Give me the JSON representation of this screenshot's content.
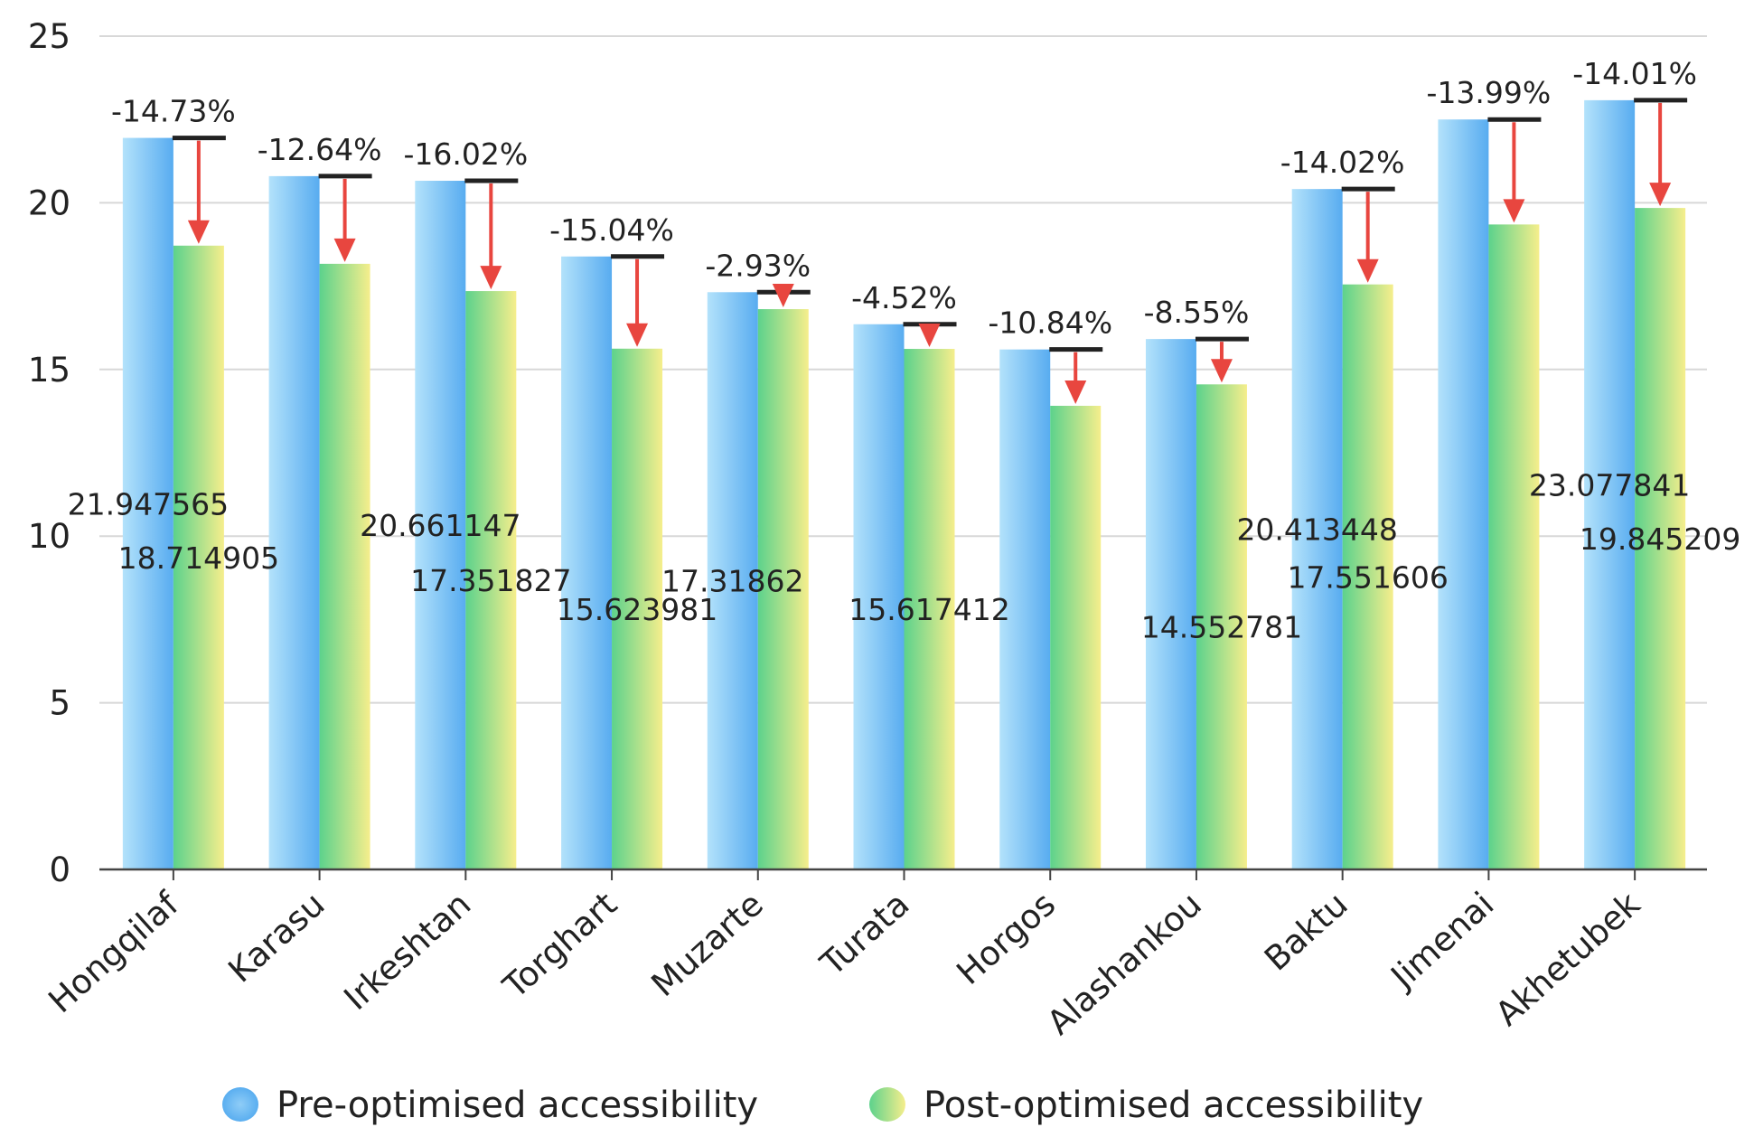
{
  "chart_data": {
    "type": "bar",
    "title": "",
    "xlabel": "",
    "ylabel": "",
    "ylim": [
      0,
      25
    ],
    "yticks": [
      0,
      5,
      10,
      15,
      20,
      25
    ],
    "grid": true,
    "legend_position": "bottom-center",
    "categories": [
      "Hongqilaf",
      "Karasu",
      "Irkeshtan",
      "Torghart",
      "Muzarte",
      "Turata",
      "Horgos",
      "Alashankou",
      "Baktu",
      "Jimenai",
      "Akhetubek"
    ],
    "series": [
      {
        "name": "Pre-optimised accessibility",
        "gradient": [
          "#b3e2fb",
          "#58acf0"
        ],
        "values": [
          21.947565,
          20.8,
          20.661147,
          18.39,
          17.31862,
          16.357,
          15.6,
          15.913,
          20.413448,
          22.5,
          23.077841
        ],
        "labels": [
          "21.947565",
          null,
          "20.661147",
          null,
          "17.31862",
          null,
          null,
          null,
          "20.413448",
          null,
          "23.077841"
        ]
      },
      {
        "name": "Post-optimised accessibility",
        "gradient": [
          "#5cd28c",
          "#f6ee8c"
        ],
        "values": [
          18.714905,
          18.17,
          17.351827,
          15.623981,
          16.81,
          15.617412,
          13.91,
          14.552781,
          17.551606,
          19.35,
          19.845209
        ],
        "labels": [
          "18.714905",
          null,
          "17.351827",
          "15.623981",
          null,
          "15.617412",
          null,
          "14.552781",
          "17.551606",
          null,
          "19.845209"
        ]
      }
    ],
    "annotations": [
      "-14.73%",
      "-12.64%",
      "-16.02%",
      "-15.04%",
      "-2.93%",
      "-4.52%",
      "-10.84%",
      "-8.55%",
      "-14.02%",
      "-13.99%",
      "-14.01%"
    ],
    "arrow_color": "#e8463f"
  }
}
